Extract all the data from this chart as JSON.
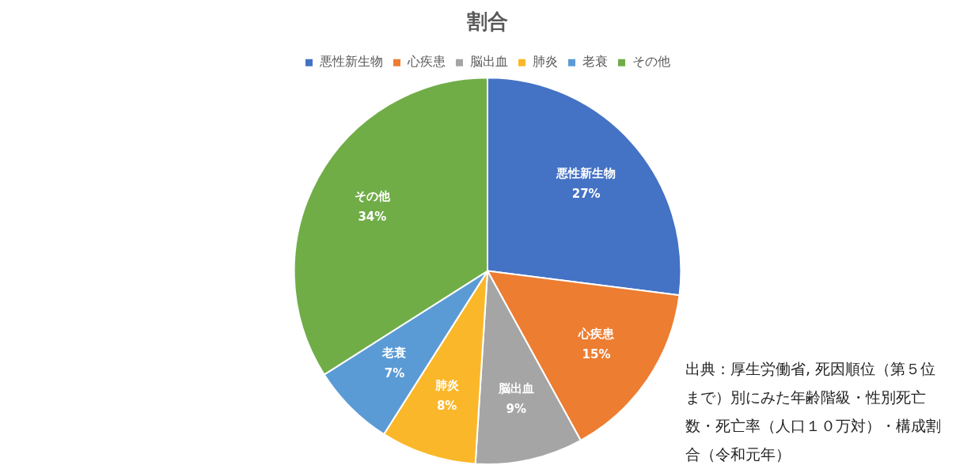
{
  "chart_data": {
    "type": "pie",
    "title": "割合",
    "categories": [
      "悪性新生物",
      "心疾患",
      "脳出血",
      "肺炎",
      "老衰",
      "その他"
    ],
    "values": [
      27,
      15,
      9,
      8,
      7,
      34
    ],
    "colors": [
      "#4472c4",
      "#ed7d31",
      "#a5a5a5",
      "#fbb72a",
      "#5b9bd5",
      "#70ad47"
    ],
    "value_labels": [
      "27%",
      "15%",
      "9%",
      "8%",
      "7%",
      "34%"
    ],
    "legend": "top",
    "annotations": [
      "出典：厚生労働省, 死因順位（第５位まで）別にみた年齢階級・性別死亡数・死亡率（人口１０万対）・構成割合（令和元年）"
    ]
  }
}
